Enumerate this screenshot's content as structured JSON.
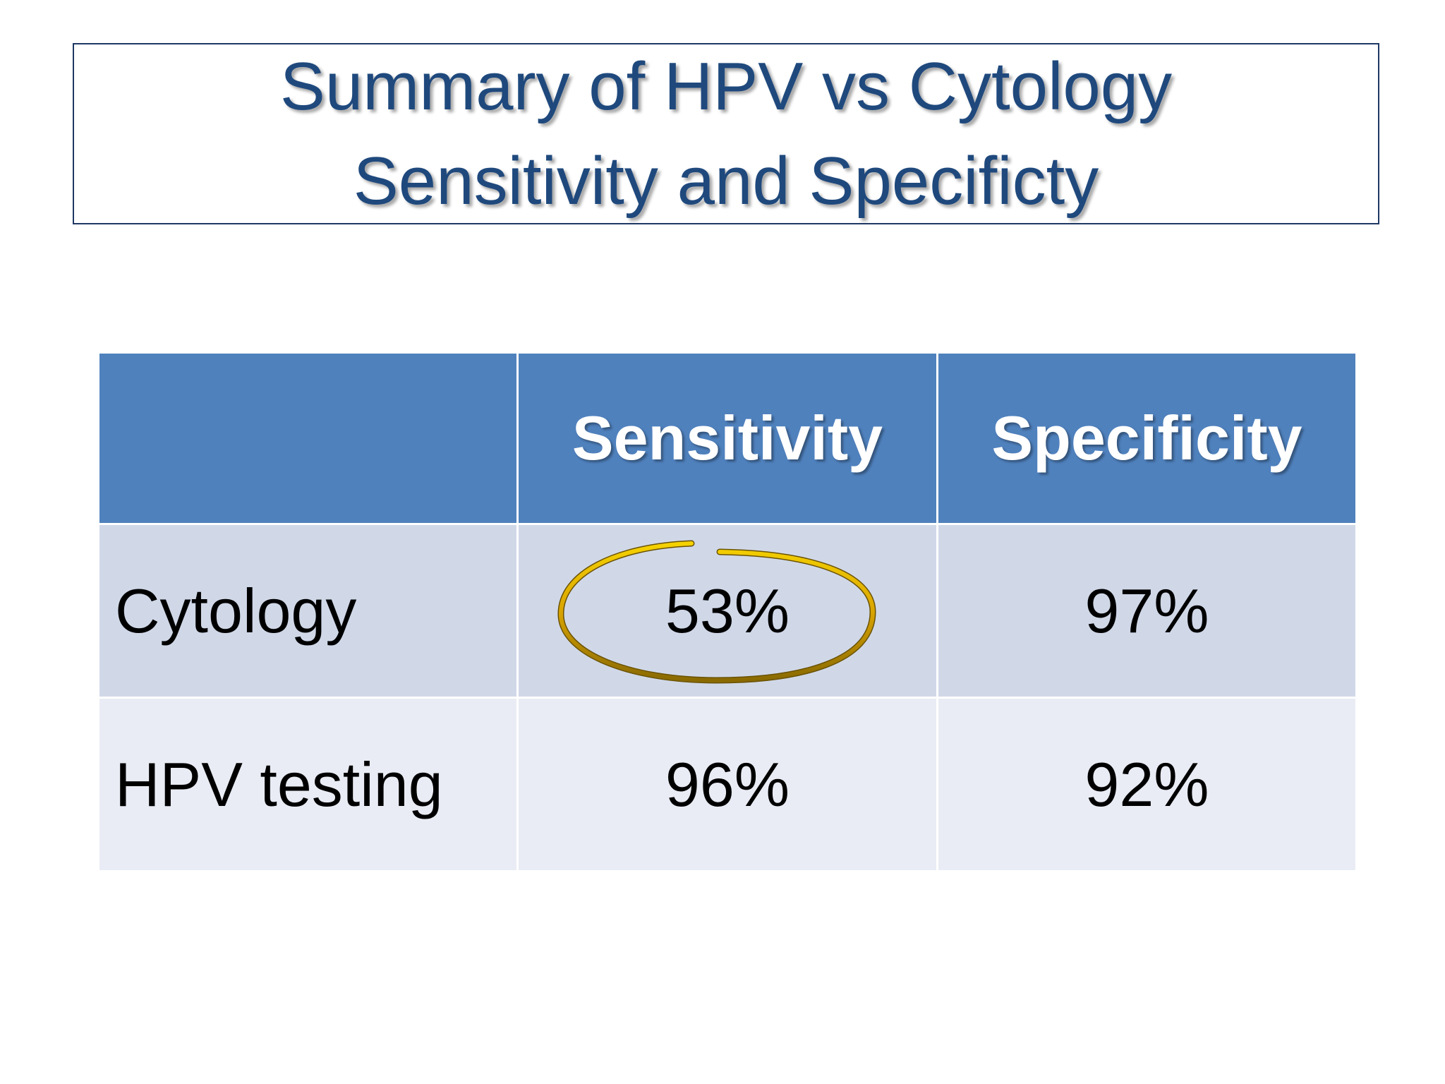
{
  "slide": {
    "title_lines": [
      "Summary of HPV vs Cytology",
      "Sensitivity and Specificty"
    ],
    "highlight_color": "#e6b000",
    "header_color": "#4f81bd",
    "title_color": "#1f497d"
  },
  "table": {
    "headers": [
      "",
      "Sensitivity",
      "Specificity"
    ],
    "rows": [
      {
        "label": "Cytology",
        "sensitivity": "53%",
        "specificity": "97%"
      },
      {
        "label": "HPV testing",
        "sensitivity": "96%",
        "specificity": "92%"
      }
    ],
    "highlighted_cell": "Cytology sensitivity"
  }
}
